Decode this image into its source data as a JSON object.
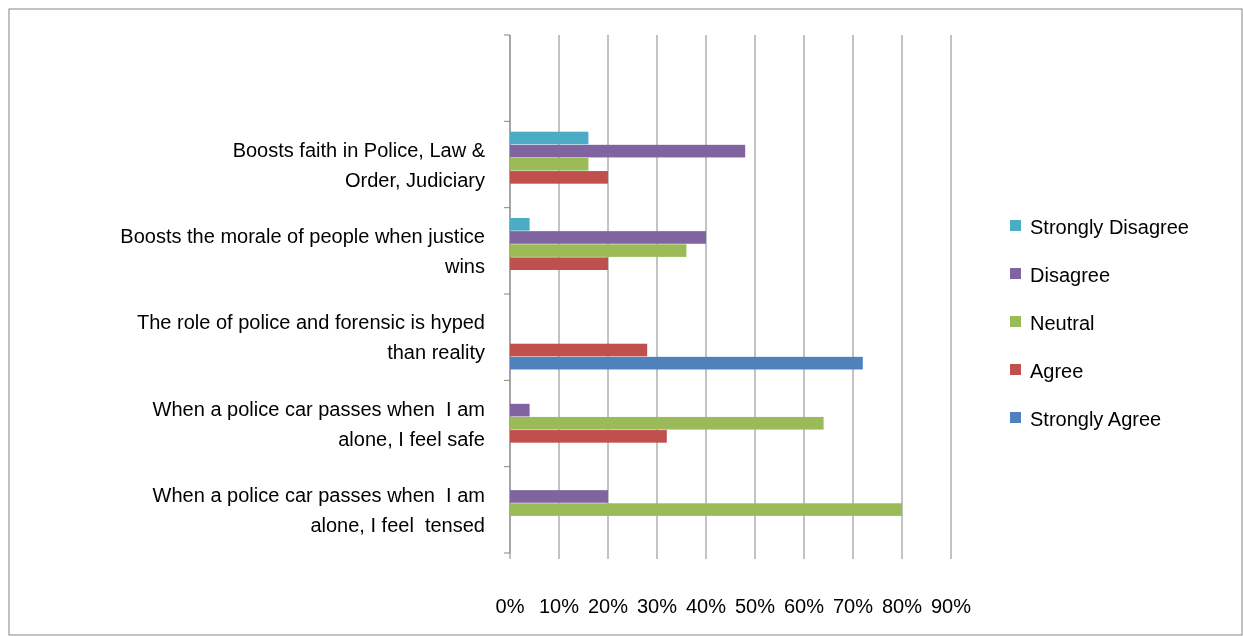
{
  "chart_data": {
    "type": "bar",
    "orientation": "horizontal",
    "categories": [
      null,
      "Boosts faith in Police, Law &\nOrder, Judiciary",
      "Boosts the morale of people when justice\nwins",
      "The role of police and forensic is hyped\nthan reality",
      "When a police car passes when  I am\nalone, I feel safe",
      "When a police car passes when  I am\nalone, I feel  tensed"
    ],
    "series": [
      {
        "name": "Strongly Agree",
        "color": "#4f81bd",
        "values": [
          null,
          null,
          null,
          72,
          null,
          null
        ]
      },
      {
        "name": "Agree",
        "color": "#c0504d",
        "values": [
          null,
          20,
          20,
          28,
          32,
          null
        ]
      },
      {
        "name": "Neutral",
        "color": "#9bbb59",
        "values": [
          null,
          16,
          36,
          null,
          64,
          80
        ]
      },
      {
        "name": "Disagree",
        "color": "#8064a2",
        "values": [
          null,
          48,
          40,
          null,
          4,
          20
        ]
      },
      {
        "name": "Strongly Disagree",
        "color": "#4bacc6",
        "values": [
          null,
          16,
          4,
          null,
          null,
          null
        ]
      }
    ],
    "xlim": [
      0,
      90
    ],
    "xticks": [
      {
        "value": 0,
        "label": "0%"
      },
      {
        "value": 10,
        "label": "10%"
      },
      {
        "value": 20,
        "label": "20%"
      },
      {
        "value": 30,
        "label": "30%"
      },
      {
        "value": 40,
        "label": "40%"
      },
      {
        "value": 50,
        "label": "50%"
      },
      {
        "value": 60,
        "label": "60%"
      },
      {
        "value": 70,
        "label": "70%"
      },
      {
        "value": 80,
        "label": "80%"
      },
      {
        "value": 90,
        "label": "90%"
      }
    ],
    "grid": "x",
    "legend": "right"
  }
}
